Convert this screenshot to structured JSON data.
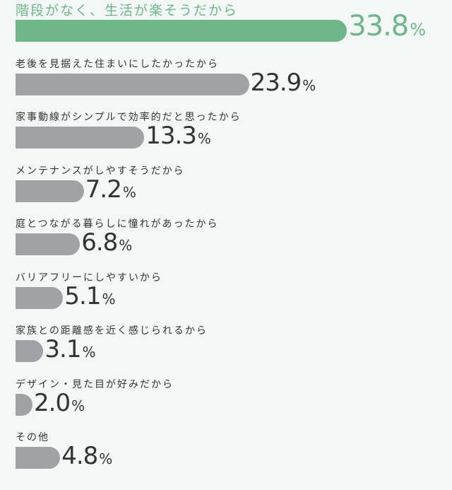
{
  "chart_data": {
    "type": "bar",
    "orientation": "horizontal",
    "unit": "%",
    "categories": [
      "階段がなく、生活が楽そうだから",
      "老後を見据えた住まいにしたかったから",
      "家事動線がシンプルで効率的だと思ったから",
      "メンテナンスがしやすそうだから",
      "庭とつながる暮らしに憧れがあったから",
      "バリアフリーにしやすいから",
      "家族との距離感を近く感じられるから",
      "デザイン・見た目が好みだから",
      "その他"
    ],
    "values": [
      33.8,
      23.9,
      13.3,
      7.2,
      6.8,
      5.1,
      3.1,
      2.0,
      4.8
    ],
    "value_labels": [
      "33.8",
      "23.9",
      "13.3",
      "7.2",
      "6.8",
      "5.1",
      "3.1",
      "2.0",
      "4.8"
    ],
    "highlight_index": 0,
    "colors": {
      "highlight": "#6fb58a",
      "default": "#a0a2a5",
      "text": "#333333",
      "background": "#f3f8f6"
    }
  }
}
